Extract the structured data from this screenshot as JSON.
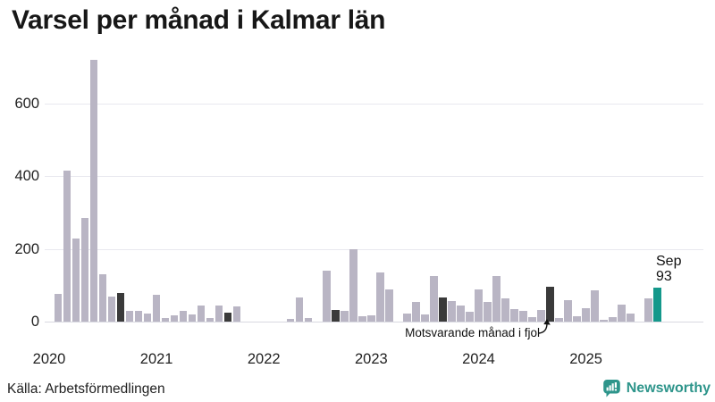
{
  "title": "Varsel per månad i Kalmar län",
  "source": "Källa: Arbetsförmedlingen",
  "branding": {
    "name": "Newsworthy",
    "icon": "newsworthy-bubble-chart-icon",
    "color": "#2e958b"
  },
  "annotation": {
    "text": "Motsvarande månad i fjol",
    "points_to": "2024-09"
  },
  "current_label": {
    "line1": "Sep",
    "line2": "93"
  },
  "colors": {
    "bar_normal": "#b9b5c4",
    "bar_same_month_previous_years": "#3a3a3a",
    "bar_current": "#14988b",
    "grid": "#e8e8ef",
    "baseline": "#d8d8e0",
    "logo": "#2e958b"
  },
  "chart_data": {
    "type": "bar",
    "title": "Varsel per månad i Kalmar län",
    "xlabel": "",
    "ylabel": "",
    "y_ticks": [
      0,
      200,
      400,
      600
    ],
    "ylim": [
      0,
      740
    ],
    "grid": "horizontal",
    "legend_position": "none",
    "year_labels": [
      "2020",
      "2021",
      "2022",
      "2023",
      "2024",
      "2025"
    ],
    "year_tick_indices": [
      0,
      12,
      24,
      36,
      48,
      60
    ],
    "months": [
      "2020-01",
      "2020-02",
      "2020-03",
      "2020-04",
      "2020-05",
      "2020-06",
      "2020-07",
      "2020-08",
      "2020-09",
      "2020-10",
      "2020-11",
      "2020-12",
      "2021-01",
      "2021-02",
      "2021-03",
      "2021-04",
      "2021-05",
      "2021-06",
      "2021-07",
      "2021-08",
      "2021-09",
      "2021-10",
      "2021-11",
      "2021-12",
      "2022-01",
      "2022-02",
      "2022-03",
      "2022-04",
      "2022-05",
      "2022-06",
      "2022-07",
      "2022-08",
      "2022-09",
      "2022-10",
      "2022-11",
      "2022-12",
      "2023-01",
      "2023-02",
      "2023-03",
      "2023-04",
      "2023-05",
      "2023-06",
      "2023-07",
      "2023-08",
      "2023-09",
      "2023-10",
      "2023-11",
      "2023-12",
      "2024-01",
      "2024-02",
      "2024-03",
      "2024-04",
      "2024-05",
      "2024-06",
      "2024-07",
      "2024-08",
      "2024-09",
      "2024-10",
      "2024-11",
      "2024-12",
      "2025-01",
      "2025-02",
      "2025-03",
      "2025-04",
      "2025-05",
      "2025-06",
      "2025-07",
      "2025-08",
      "2025-09"
    ],
    "values": [
      0,
      76,
      416,
      228,
      285,
      720,
      129,
      69,
      79,
      30,
      30,
      22,
      73,
      11,
      16,
      29,
      19,
      43,
      11,
      43,
      25,
      41,
      0,
      0,
      0,
      0,
      0,
      8,
      66,
      9,
      0,
      141,
      33,
      29,
      200,
      14,
      16,
      135,
      88,
      0,
      22,
      55,
      19,
      125,
      67,
      57,
      43,
      26,
      88,
      55,
      125,
      63,
      35,
      30,
      12,
      33,
      95,
      10,
      60,
      14,
      38,
      85,
      6,
      12,
      47,
      23,
      0,
      65,
      93
    ],
    "same_month_previous_year_indices": [
      8,
      20,
      32,
      44,
      56
    ],
    "current_index": 68,
    "current_point": {
      "month": "2025-09",
      "label": "Sep",
      "value": 93
    }
  }
}
